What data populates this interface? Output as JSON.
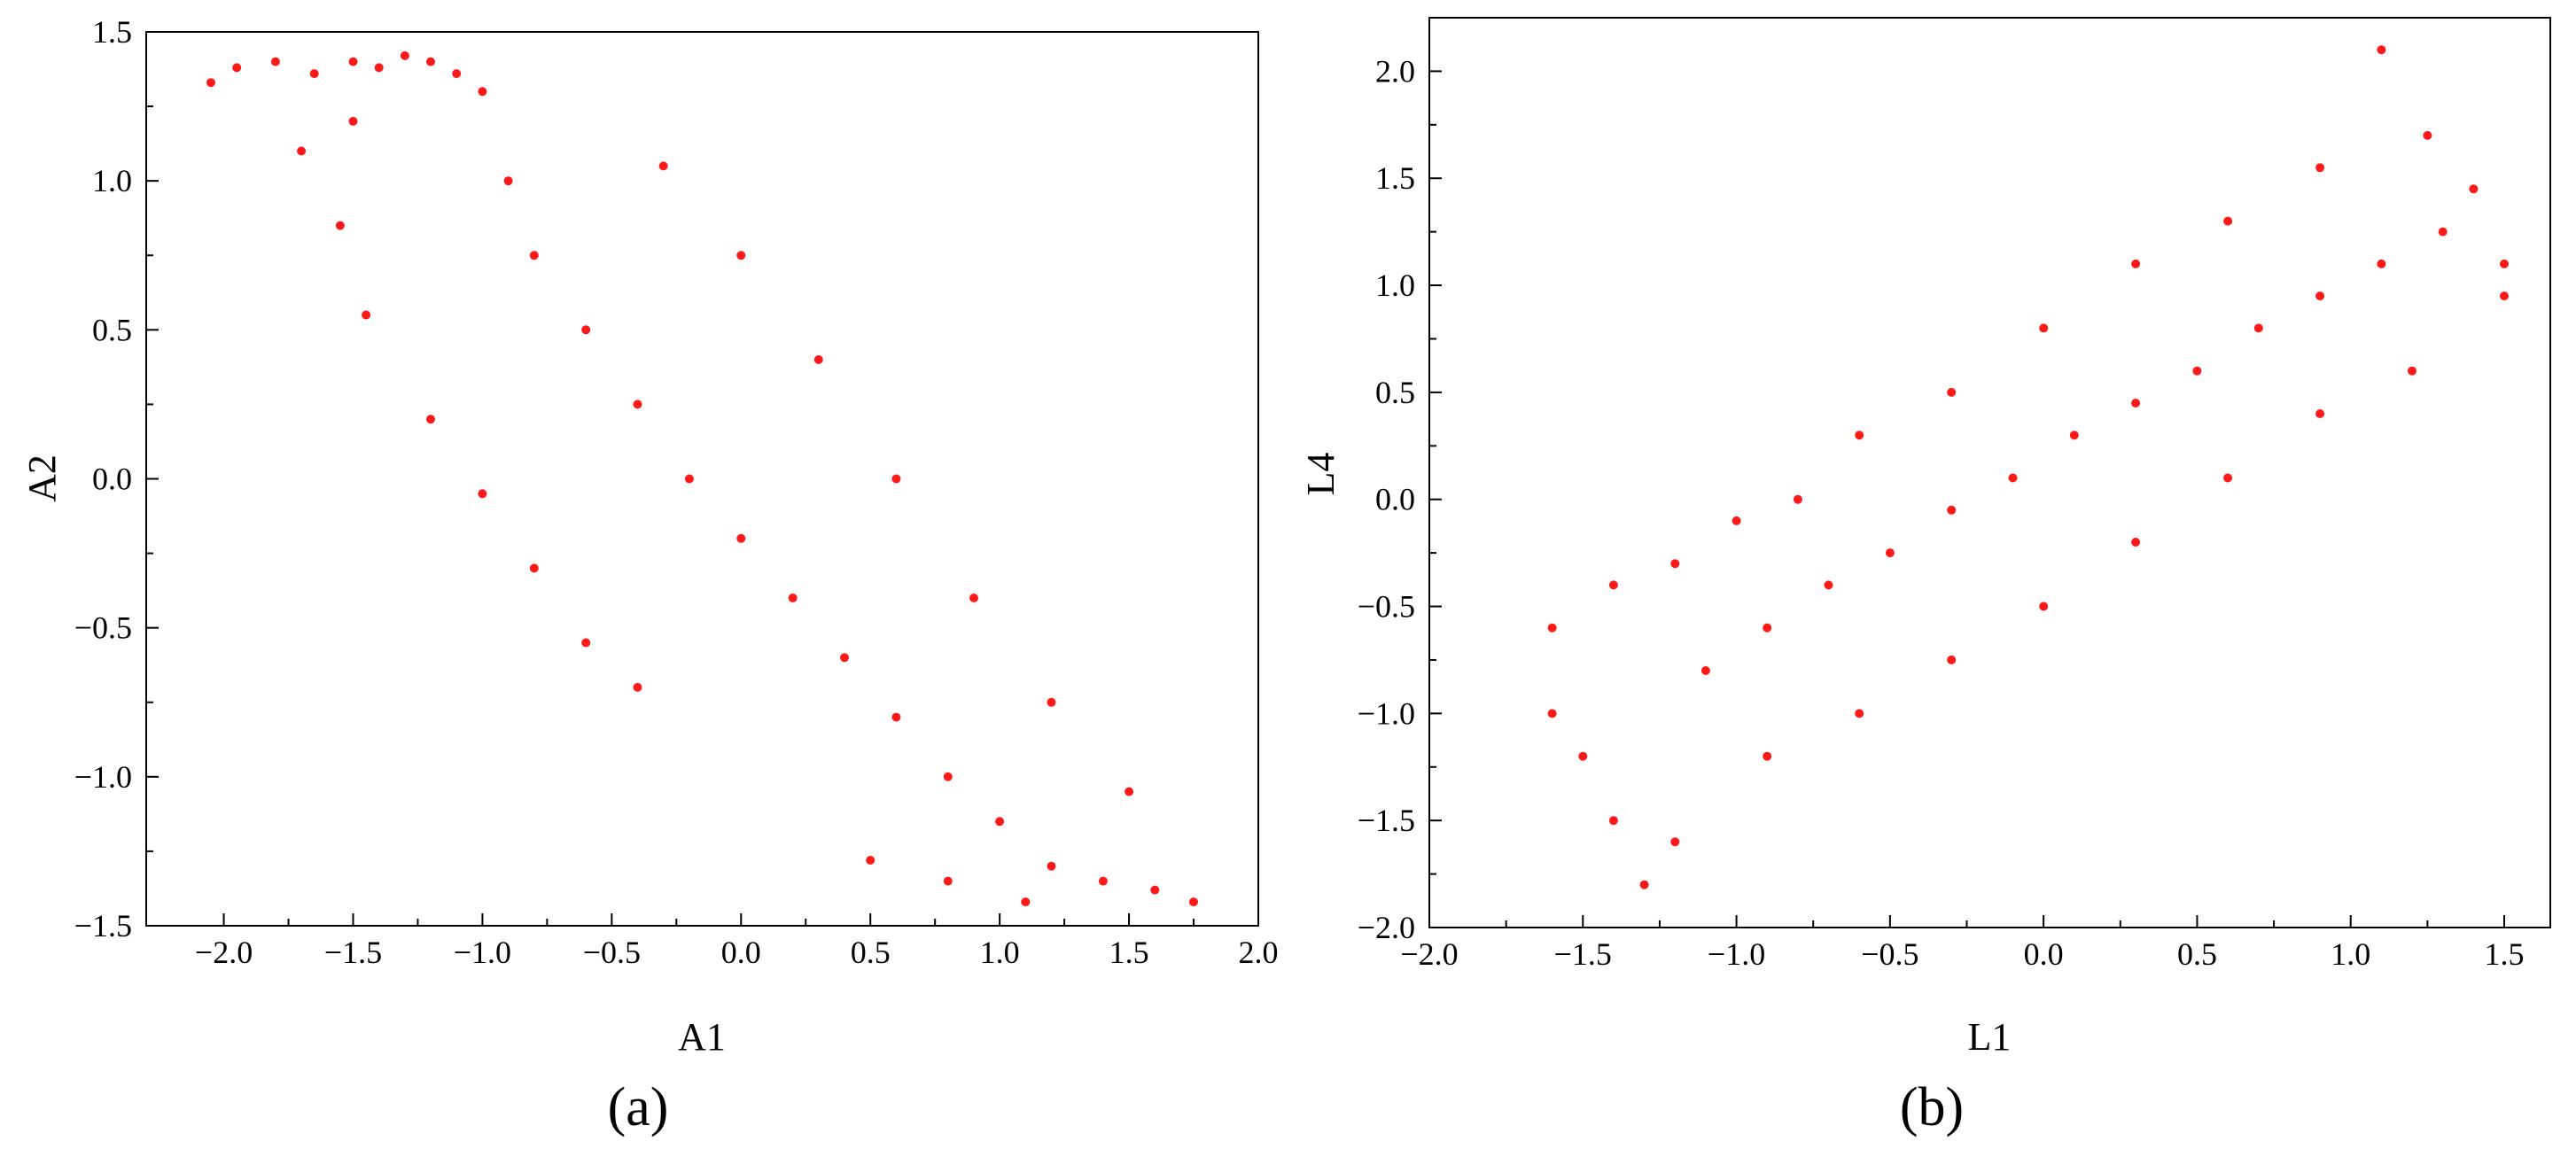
{
  "figure": {
    "colors": {
      "point": "#ff1a1a",
      "axis": "#000000",
      "background": "#ffffff"
    }
  },
  "chart_data": [
    {
      "type": "scatter",
      "panel_label": "(a)",
      "xlabel": "A1",
      "ylabel": "A2",
      "xlim": [
        -2.3,
        2.0
      ],
      "ylim": [
        -1.5,
        1.5
      ],
      "x_ticks": [
        "−2.0",
        "−1.5",
        "−1.0",
        "−0.5",
        "0.0",
        "0.5",
        "1.0",
        "1.5",
        "2.0"
      ],
      "y_ticks": [
        "−1.5",
        "−1.0",
        "−0.5",
        "0.0",
        "0.5",
        "1.0",
        "1.5"
      ],
      "grid": false,
      "series": [
        {
          "color": "#ff1a1a",
          "points": [
            [
              -2.05,
              1.33
            ],
            [
              -1.95,
              1.38
            ],
            [
              -1.8,
              1.4
            ],
            [
              -1.65,
              1.36
            ],
            [
              -1.5,
              1.4
            ],
            [
              -1.4,
              1.38
            ],
            [
              -1.3,
              1.42
            ],
            [
              -1.2,
              1.4
            ],
            [
              -1.1,
              1.36
            ],
            [
              -1.0,
              1.3
            ],
            [
              -1.5,
              1.2
            ],
            [
              -1.7,
              1.1
            ],
            [
              -1.55,
              0.85
            ],
            [
              -1.45,
              0.55
            ],
            [
              -1.2,
              0.2
            ],
            [
              -1.0,
              -0.05
            ],
            [
              -0.8,
              -0.3
            ],
            [
              -0.6,
              -0.55
            ],
            [
              -0.4,
              -0.7
            ],
            [
              -0.9,
              1.0
            ],
            [
              -0.8,
              0.75
            ],
            [
              -0.6,
              0.5
            ],
            [
              -0.4,
              0.25
            ],
            [
              -0.2,
              0.0
            ],
            [
              0.0,
              -0.2
            ],
            [
              0.2,
              -0.4
            ],
            [
              0.4,
              -0.6
            ],
            [
              0.6,
              -0.8
            ],
            [
              0.8,
              -1.0
            ],
            [
              1.0,
              -1.15
            ],
            [
              1.2,
              -1.3
            ],
            [
              1.4,
              -1.35
            ],
            [
              1.6,
              -1.38
            ],
            [
              1.75,
              -1.42
            ],
            [
              -0.3,
              1.05
            ],
            [
              0.0,
              0.75
            ],
            [
              0.3,
              0.4
            ],
            [
              0.6,
              0.0
            ],
            [
              0.9,
              -0.4
            ],
            [
              1.2,
              -0.75
            ],
            [
              1.5,
              -1.05
            ],
            [
              0.5,
              -1.28
            ],
            [
              0.8,
              -1.35
            ],
            [
              1.1,
              -1.42
            ]
          ]
        }
      ]
    },
    {
      "type": "scatter",
      "panel_label": "(b)",
      "xlabel": "L1",
      "ylabel": "L4",
      "xlim": [
        -2.0,
        1.65
      ],
      "ylim": [
        -2.0,
        2.25
      ],
      "x_ticks": [
        "−2.0",
        "−1.5",
        "−1.0",
        "−0.5",
        "0.0",
        "0.5",
        "1.0",
        "1.5"
      ],
      "y_ticks": [
        "−2.0",
        "−1.5",
        "−1.0",
        "−0.5",
        "0.0",
        "0.5",
        "1.0",
        "1.5",
        "2.0"
      ],
      "grid": false,
      "series": [
        {
          "color": "#ff1a1a",
          "points": [
            [
              -1.6,
              -1.0
            ],
            [
              -1.5,
              -1.2
            ],
            [
              -1.4,
              -1.5
            ],
            [
              -1.3,
              -1.8
            ],
            [
              -1.2,
              -1.6
            ],
            [
              -1.6,
              -0.6
            ],
            [
              -1.4,
              -0.4
            ],
            [
              -1.2,
              -0.3
            ],
            [
              -1.0,
              -0.1
            ],
            [
              -0.8,
              0.0
            ],
            [
              -1.1,
              -0.8
            ],
            [
              -0.9,
              -0.6
            ],
            [
              -0.7,
              -0.4
            ],
            [
              -0.5,
              -0.25
            ],
            [
              -0.3,
              -0.05
            ],
            [
              -0.1,
              0.1
            ],
            [
              0.1,
              0.3
            ],
            [
              0.3,
              0.45
            ],
            [
              0.5,
              0.6
            ],
            [
              0.7,
              0.8
            ],
            [
              0.9,
              0.95
            ],
            [
              1.1,
              1.1
            ],
            [
              1.3,
              1.25
            ],
            [
              1.5,
              1.1
            ],
            [
              -0.6,
              0.3
            ],
            [
              -0.3,
              0.5
            ],
            [
              0.0,
              0.8
            ],
            [
              0.3,
              1.1
            ],
            [
              0.6,
              1.3
            ],
            [
              0.9,
              1.55
            ],
            [
              1.1,
              2.1
            ],
            [
              -0.9,
              -1.2
            ],
            [
              -0.6,
              -1.0
            ],
            [
              -0.3,
              -0.75
            ],
            [
              0.0,
              -0.5
            ],
            [
              0.3,
              -0.2
            ],
            [
              0.6,
              0.1
            ],
            [
              0.9,
              0.4
            ],
            [
              1.2,
              0.6
            ],
            [
              1.4,
              1.45
            ],
            [
              1.25,
              1.7
            ],
            [
              1.5,
              0.95
            ]
          ]
        }
      ]
    }
  ]
}
